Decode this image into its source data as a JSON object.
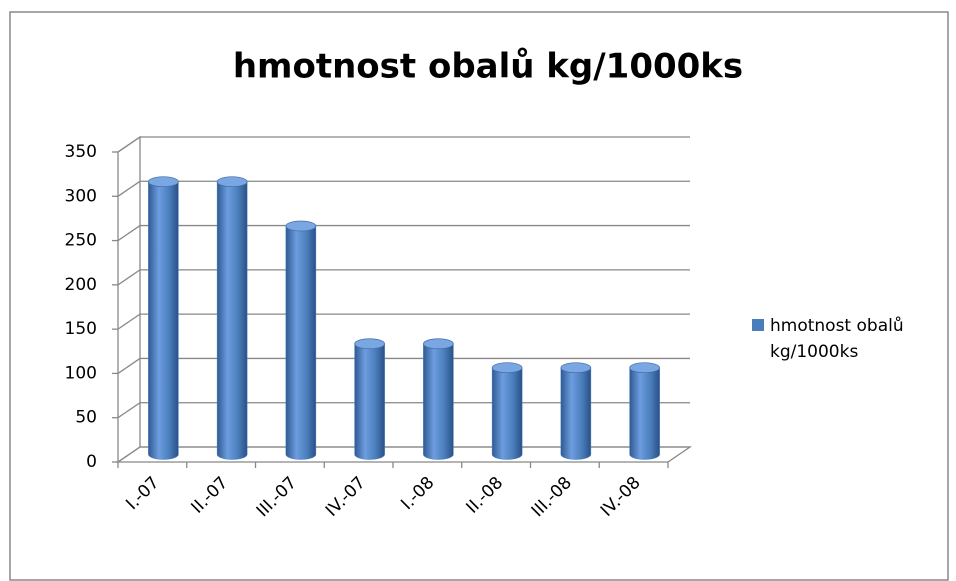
{
  "chart_data": {
    "type": "bar",
    "title": "hmotnost obalů kg/1000ks",
    "categories": [
      "I.-07",
      "II.-07",
      "III.-07",
      "IV.-07",
      "I.-08",
      "II.-08",
      "III.-08",
      "IV.-08"
    ],
    "series": [
      {
        "name": "hmotnost obalů kg/1000ks",
        "color": "#4a7ebb",
        "values": [
          308,
          308,
          258,
          125,
          125,
          98,
          98,
          98
        ]
      }
    ],
    "ylim": [
      0,
      350
    ],
    "yticks": [
      0,
      50,
      100,
      150,
      200,
      250,
      300,
      350
    ],
    "grid": true,
    "legend": "right"
  }
}
